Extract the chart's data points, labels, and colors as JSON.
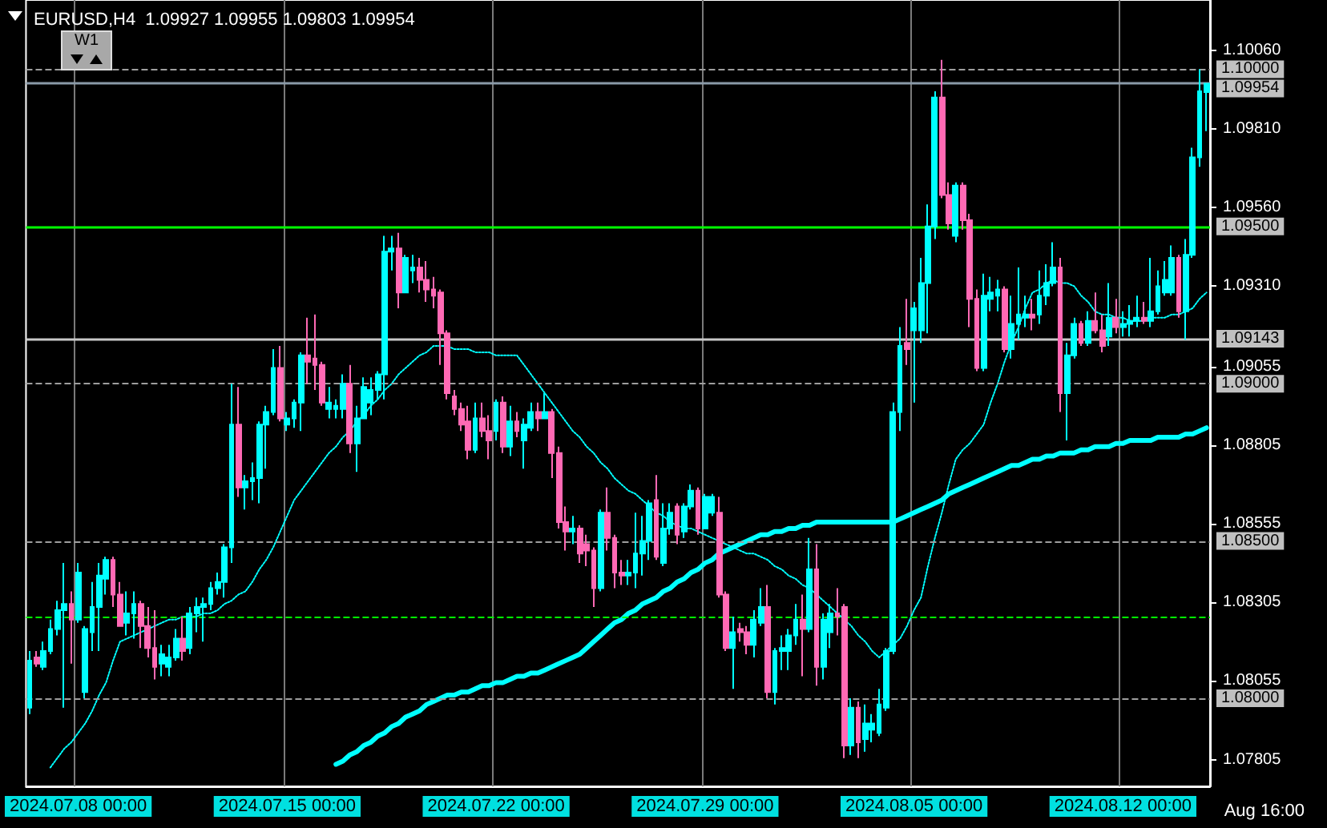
{
  "chart_data": {
    "type": "candlestick",
    "title": "EURUSD,H4  1.09927 1.09955 1.09803 1.09954",
    "annotations": [
      "W1",
      "Aug 16:00"
    ],
    "categories": [
      null,
      null,
      null,
      null,
      null,
      null,
      null,
      "2024.07.08 00:00",
      null,
      null,
      null,
      null,
      null,
      null,
      null,
      null,
      null,
      null,
      null,
      null,
      null,
      null,
      null,
      null,
      null,
      null,
      null,
      null,
      null,
      null,
      null,
      null,
      null,
      null,
      null,
      null,
      null,
      "2024.07.15 00:00",
      null,
      null,
      null,
      null,
      null,
      null,
      null,
      null,
      null,
      null,
      null,
      null,
      null,
      null,
      null,
      null,
      null,
      null,
      null,
      null,
      null,
      null,
      null,
      null,
      null,
      null,
      null,
      null,
      null,
      "2024.07.22 00:00",
      null,
      null,
      null,
      null,
      null,
      null,
      null,
      null,
      null,
      null,
      null,
      null,
      null,
      null,
      null,
      null,
      null,
      null,
      null,
      null,
      null,
      null,
      null,
      null,
      null,
      null,
      null,
      null,
      null,
      "2024.07.29 00:00",
      null,
      null,
      null,
      null,
      null,
      null,
      null,
      null,
      null,
      null,
      null,
      null,
      null,
      null,
      null,
      null,
      null,
      null,
      null,
      null,
      null,
      null,
      null,
      null,
      null,
      null,
      null,
      null,
      null,
      "2024.08.05 00:00",
      null,
      null,
      null,
      null,
      null,
      null,
      null,
      null,
      null,
      null,
      null,
      null,
      null,
      null,
      null,
      null,
      null,
      null,
      null,
      null,
      null,
      null,
      null,
      null,
      null,
      null,
      null,
      null,
      null,
      "2024.08.12 00:00",
      null,
      null,
      null,
      null,
      null,
      null,
      null,
      null,
      null,
      null,
      null,
      null
    ],
    "colors": [
      "#00ffff",
      "#ff69b4",
      "#00ffff",
      "#00ffff",
      "#00ffff",
      "#00ffff",
      "#ff69b4",
      "#00ffff",
      "#00ffff",
      "#00ffff",
      "#00ffff",
      "#00ffff",
      "#ff69b4",
      "#ff69b4",
      "#00ffff",
      "#00ffff",
      "#ff69b4",
      "#ff69b4",
      "#ff69b4",
      "#00ffff",
      "#00ffff",
      "#00ffff",
      "#ff69b4",
      "#00ffff",
      "#00ffff",
      "#00ffff",
      "#00ffff",
      "#00ffff",
      "#00ffff",
      "#00ffff",
      "#ff69b4",
      "#00ffff",
      "#00ffff",
      "#00ffff",
      "#00ffff",
      "#00ffff",
      "#ff69b4",
      "#00ffff",
      "#00ffff",
      "#00ffff",
      "#ff69b4",
      "#ff69b4",
      "#ff69b4",
      "#00ffff",
      "#00ffff",
      "#00ffff",
      "#ff69b4",
      "#00ffff",
      "#00ffff",
      "#00ffff",
      "#00ffff",
      "#00ffff",
      "#00ffff",
      "#ff69b4",
      "#00ffff",
      "#00ffff",
      "#ff69b4",
      "#ff69b4",
      "#ff69b4",
      "#ff69b4",
      "#ff69b4",
      "#ff69b4",
      "#ff69b4",
      "#ff69b4",
      "#00ffff",
      "#ff69b4",
      "#ff69b4",
      "#00ffff",
      "#ff69b4",
      "#00ffff",
      "#ff69b4",
      "#00ffff",
      "#00ffff",
      "#ff69b4",
      "#00ffff",
      "#ff69b4",
      "#ff69b4",
      "#ff69b4",
      "#00ffff",
      "#ff69b4",
      "#ff69b4",
      "#ff69b4",
      "#00ffff",
      "#ff69b4",
      "#ff69b4",
      "#ff69b4",
      "#00ffff",
      "#00ffff",
      "#00ffff",
      "#00ffff",
      "#ff69b4",
      "#00ffff",
      "#00ffff",
      "#ff69b4",
      "#00ffff",
      "#00ffff",
      "#ff69b4",
      "#00ffff",
      "#00ffff",
      "#ff69b4",
      "#ff69b4",
      "#00ffff",
      "#ff69b4",
      "#ff69b4",
      "#00ffff",
      "#00ffff",
      "#ff69b4",
      "#00ffff",
      "#00ffff",
      "#00ffff",
      "#00ffff",
      "#ff69b4",
      "#00ffff",
      "#ff69b4",
      "#00ffff",
      "#00ffff",
      "#ff69b4",
      "#ff69b4",
      "#00ffff",
      "#ff69b4",
      "#00ffff",
      "#00ffff",
      "#00ffff",
      "#00ffff",
      "#00ffff",
      "#00ffff",
      "#ff69b4",
      "#00ffff",
      "#00ffff",
      "#00ffff",
      "#00ffff",
      "#ff69b4",
      "#ff69b4",
      "#00ffff",
      "#ff69b4",
      "#ff69b4",
      "#ff69b4",
      "#00ffff",
      "#00ffff",
      "#00ffff",
      "#ff69b4",
      "#00ffff",
      "#00ffff",
      "#00ffff",
      "#ff69b4",
      "#00ffff",
      "#00ffff",
      "#00ffff",
      "#ff69b4",
      "#00ffff",
      "#00ffff",
      "#ff69b4",
      "#00ffff",
      "#ff69b4",
      "#ff69b4",
      "#00ffff",
      "#ff69b4",
      "#00ffff",
      "#00ffff",
      "#00ffff",
      "#ff69b4",
      "#00ffff",
      "#00ffff",
      "#00ffff",
      "#00ffff",
      "#ff69b4",
      "#00ffff",
      "#00ffff",
      "#00ffff",
      "#00ffff"
    ],
    "ohlc": [
      [
        1.0797,
        1.0815,
        1.0795,
        1.0812
      ],
      [
        1.0813,
        1.0815,
        1.081,
        1.0811
      ],
      [
        1.081,
        1.0818,
        1.0809,
        1.0815
      ],
      [
        1.0815,
        1.0825,
        1.0814,
        1.0822
      ],
      [
        1.0822,
        1.0831,
        1.082,
        1.0828
      ],
      [
        1.0828,
        1.0843,
        1.0797,
        1.083
      ],
      [
        1.083,
        1.0834,
        1.0811,
        1.0825
      ],
      [
        1.0825,
        1.0843,
        1.0824,
        1.084
      ],
      [
        1.0802,
        1.0823,
        1.08,
        1.0822
      ],
      [
        1.0821,
        1.0837,
        1.0815,
        1.0829
      ],
      [
        1.0829,
        1.0843,
        1.0815,
        1.0839
      ],
      [
        1.0838,
        1.0845,
        1.0833,
        1.0844
      ],
      [
        1.0844,
        1.0845,
        1.0829,
        1.0833
      ],
      [
        1.0833,
        1.0837,
        1.0823,
        1.0823
      ],
      [
        1.0824,
        1.0834,
        1.082,
        1.0827
      ],
      [
        1.0827,
        1.0834,
        1.0819,
        1.083
      ],
      [
        1.083,
        1.0831,
        1.0816,
        1.0823
      ],
      [
        1.0823,
        1.0829,
        1.0813,
        1.0816
      ],
      [
        1.0816,
        1.0828,
        1.0806,
        1.081
      ],
      [
        1.0811,
        1.0817,
        1.0807,
        1.0814
      ],
      [
        1.081,
        1.0817,
        1.0807,
        1.0813
      ],
      [
        1.0813,
        1.0822,
        1.0812,
        1.0819
      ],
      [
        1.0819,
        1.0826,
        1.0812,
        1.0815
      ],
      [
        1.0816,
        1.0829,
        1.0814,
        1.0827
      ],
      [
        1.0827,
        1.0832,
        1.0821,
        1.0829
      ],
      [
        1.0829,
        1.0832,
        1.0818,
        1.083
      ],
      [
        1.083,
        1.0837,
        1.0828,
        1.0835
      ],
      [
        1.0835,
        1.084,
        1.0833,
        1.0837
      ],
      [
        1.0837,
        1.0849,
        1.0832,
        1.0848
      ],
      [
        1.0848,
        1.09,
        1.0843,
        1.0887
      ],
      [
        1.0887,
        1.0899,
        1.0864,
        1.0867
      ],
      [
        1.0867,
        1.0871,
        1.086,
        1.0869
      ],
      [
        1.0869,
        1.0875,
        1.0863,
        1.087
      ],
      [
        1.087,
        1.0888,
        1.0862,
        1.0887
      ],
      [
        1.0887,
        1.0893,
        1.0873,
        1.0891
      ],
      [
        1.0891,
        1.0911,
        1.089,
        1.0905
      ],
      [
        1.0905,
        1.0912,
        1.0888,
        1.0889
      ],
      [
        1.0887,
        1.0891,
        1.0885,
        1.0889
      ],
      [
        1.0889,
        1.0895,
        1.0886,
        1.0894
      ],
      [
        1.0894,
        1.091,
        1.0885,
        1.0909
      ],
      [
        1.0909,
        1.0921,
        1.09,
        1.0907
      ],
      [
        1.0908,
        1.0922,
        1.0898,
        1.0906
      ],
      [
        1.0906,
        1.0907,
        1.0893,
        1.0894
      ],
      [
        1.0892,
        1.0899,
        1.0889,
        1.0894
      ],
      [
        1.0892,
        1.0895,
        1.0889,
        1.0893
      ],
      [
        1.0892,
        1.0903,
        1.0889,
        1.09
      ],
      [
        1.09,
        1.0906,
        1.0878,
        1.0881
      ],
      [
        1.0881,
        1.0893,
        1.0872,
        1.0889
      ],
      [
        1.0889,
        1.0902,
        1.0889,
        1.0899
      ],
      [
        1.0894,
        1.0902,
        1.089,
        1.0898
      ],
      [
        1.0898,
        1.0904,
        1.0895,
        1.0903
      ],
      [
        1.0903,
        1.0947,
        1.0895,
        1.0942
      ],
      [
        1.0942,
        1.0947,
        1.0936,
        1.0943
      ],
      [
        1.0943,
        1.0948,
        1.0924,
        1.0929
      ],
      [
        1.0929,
        1.0941,
        1.0929,
        1.094
      ],
      [
        1.0936,
        1.0941,
        1.0932,
        1.0937
      ],
      [
        1.0937,
        1.094,
        1.0929,
        1.0933
      ],
      [
        1.0933,
        1.0939,
        1.0926,
        1.093
      ],
      [
        1.093,
        1.0934,
        1.0924,
        1.0928
      ],
      [
        1.0929,
        1.093,
        1.0906,
        1.0916
      ],
      [
        1.0916,
        1.0917,
        1.0895,
        1.0897
      ],
      [
        1.0896,
        1.0898,
        1.089,
        1.0892
      ],
      [
        1.0892,
        1.0894,
        1.0885,
        1.0887
      ],
      [
        1.0888,
        1.0893,
        1.0876,
        1.0879
      ],
      [
        1.0879,
        1.0894,
        1.0878,
        1.0889
      ],
      [
        1.0889,
        1.0894,
        1.0883,
        1.0885
      ],
      [
        1.0885,
        1.089,
        1.0876,
        1.0882
      ],
      [
        1.0885,
        1.0895,
        1.0882,
        1.0894
      ],
      [
        1.0894,
        1.0896,
        1.0878,
        1.088
      ],
      [
        1.088,
        1.0893,
        1.0877,
        1.0888
      ],
      [
        1.0888,
        1.0891,
        1.0883,
        1.0885
      ],
      [
        1.0882,
        1.0889,
        1.0873,
        1.0887
      ],
      [
        1.0886,
        1.0894,
        1.0885,
        1.0891
      ],
      [
        1.0891,
        1.0894,
        1.0885,
        1.0889
      ],
      [
        1.0889,
        1.0897,
        1.0889,
        1.0891
      ],
      [
        1.0891,
        1.0892,
        1.087,
        1.0878
      ],
      [
        1.0878,
        1.088,
        1.0854,
        1.0856
      ],
      [
        1.0856,
        1.0861,
        1.0847,
        1.0853
      ],
      [
        1.0853,
        1.0858,
        1.0849,
        1.0854
      ],
      [
        1.0854,
        1.0855,
        1.0843,
        1.0846
      ],
      [
        1.0849,
        1.0852,
        1.0842,
        1.0847
      ],
      [
        1.0847,
        1.0848,
        1.0829,
        1.0835
      ],
      [
        1.0835,
        1.086,
        1.0834,
        1.0859
      ],
      [
        1.0859,
        1.0867,
        1.0847,
        1.0851
      ],
      [
        1.0851,
        1.0852,
        1.0835,
        1.084
      ],
      [
        1.084,
        1.0844,
        1.0836,
        1.0839
      ],
      [
        1.0839,
        1.0844,
        1.0836,
        1.084
      ],
      [
        1.084,
        1.0859,
        1.0835,
        1.0846
      ],
      [
        1.0846,
        1.0858,
        1.0839,
        1.085
      ],
      [
        1.085,
        1.0863,
        1.0844,
        1.0862
      ],
      [
        1.0863,
        1.0871,
        1.0844,
        1.0845
      ],
      [
        1.0843,
        1.0862,
        1.0842,
        1.0854
      ],
      [
        1.0854,
        1.0862,
        1.0852,
        1.0859
      ],
      [
        1.0861,
        1.0862,
        1.0849,
        1.0852
      ],
      [
        1.0853,
        1.0862,
        1.0851,
        1.0861
      ],
      [
        1.0861,
        1.0868,
        1.086,
        1.0866
      ],
      [
        1.0866,
        1.0867,
        1.0852,
        1.0854
      ],
      [
        1.0854,
        1.0865,
        1.0854,
        1.0864
      ],
      [
        1.0859,
        1.0865,
        1.0858,
        1.0864
      ],
      [
        1.0859,
        1.0864,
        1.0832,
        1.0833
      ],
      [
        1.0833,
        1.0834,
        1.0815,
        1.0816
      ],
      [
        1.0816,
        1.0826,
        1.0803,
        1.0821
      ],
      [
        1.0822,
        1.0824,
        1.0818,
        1.0821
      ],
      [
        1.0821,
        1.0823,
        1.0814,
        1.0817
      ],
      [
        1.0817,
        1.0828,
        1.0813,
        1.0825
      ],
      [
        1.0824,
        1.0835,
        1.0823,
        1.0829
      ],
      [
        1.0829,
        1.0836,
        1.08,
        1.0802
      ],
      [
        1.0802,
        1.0816,
        1.0798,
        1.0815
      ],
      [
        1.0815,
        1.082,
        1.0809,
        1.0816
      ],
      [
        1.0815,
        1.0822,
        1.0809,
        1.082
      ],
      [
        1.082,
        1.083,
        1.0817,
        1.0825
      ],
      [
        1.0825,
        1.0833,
        1.0807,
        1.0822
      ],
      [
        1.0822,
        1.0851,
        1.0821,
        1.0841
      ],
      [
        1.0841,
        1.0849,
        1.0804,
        1.081
      ],
      [
        1.081,
        1.0827,
        1.0806,
        1.0825
      ],
      [
        1.0821,
        1.083,
        1.0816,
        1.0827
      ],
      [
        1.0827,
        1.0835,
        1.082,
        1.0826
      ],
      [
        1.0829,
        1.083,
        1.0781,
        1.0785
      ],
      [
        1.0785,
        1.08,
        1.0782,
        1.0797
      ],
      [
        1.0797,
        1.0799,
        1.0781,
        1.0786
      ],
      [
        1.0787,
        1.0798,
        1.0783,
        1.0792
      ],
      [
        1.079,
        1.0795,
        1.0786,
        1.0792
      ],
      [
        1.0789,
        1.0803,
        1.0788,
        1.0798
      ],
      [
        1.0797,
        1.0816,
        1.0796,
        1.0815
      ],
      [
        1.0815,
        1.0894,
        1.0814,
        1.0891
      ],
      [
        1.0891,
        1.0918,
        1.0885,
        1.0912
      ],
      [
        1.0913,
        1.0927,
        1.0906,
        1.0911
      ],
      [
        1.0917,
        1.0926,
        1.0894,
        1.0924
      ],
      [
        1.0917,
        1.094,
        1.0913,
        1.0932
      ],
      [
        1.0932,
        1.0957,
        1.0916,
        1.095
      ],
      [
        1.095,
        1.0993,
        1.0946,
        1.0991
      ],
      [
        1.0991,
        1.1003,
        1.0959,
        1.096
      ],
      [
        1.096,
        1.0964,
        1.0949,
        1.0951
      ],
      [
        1.0947,
        1.0964,
        1.0945,
        1.0963
      ],
      [
        1.0963,
        1.0964,
        1.0949,
        1.0952
      ],
      [
        1.0952,
        1.0954,
        1.0918,
        1.0927
      ],
      [
        1.0927,
        1.093,
        1.0904,
        1.0905
      ],
      [
        1.0905,
        1.0935,
        1.0904,
        1.0928
      ],
      [
        1.0927,
        1.0934,
        1.0923,
        1.0929
      ],
      [
        1.0928,
        1.0933,
        1.0923,
        1.093
      ],
      [
        1.093,
        1.0931,
        1.091,
        1.0911
      ],
      [
        1.0911,
        1.0928,
        1.0908,
        1.0919
      ],
      [
        1.0919,
        1.0937,
        1.0914,
        1.0922
      ],
      [
        1.0921,
        1.0928,
        1.0918,
        1.0922
      ],
      [
        1.0922,
        1.0927,
        1.0917,
        1.0921
      ],
      [
        1.0922,
        1.0936,
        1.0919,
        1.0928
      ],
      [
        1.0928,
        1.0938,
        1.0925,
        1.0932
      ],
      [
        1.0932,
        1.0945,
        1.0931,
        1.0937
      ],
      [
        1.0937,
        1.094,
        1.0891,
        1.0897
      ],
      [
        1.0897,
        1.0913,
        1.0882,
        1.0909
      ],
      [
        1.0909,
        1.0921,
        1.0908,
        1.0919
      ],
      [
        1.0919,
        1.092,
        1.0912,
        1.0913
      ],
      [
        1.0913,
        1.0923,
        1.0912,
        1.092
      ],
      [
        1.092,
        1.0929,
        1.0916,
        1.0917
      ],
      [
        1.0917,
        1.0922,
        1.091,
        1.0912
      ],
      [
        1.0915,
        1.0932,
        1.0912,
        1.0921
      ],
      [
        1.0921,
        1.0927,
        1.0916,
        1.0918
      ],
      [
        1.0918,
        1.0923,
        1.0915,
        1.0919
      ],
      [
        1.0919,
        1.0925,
        1.0915,
        1.092
      ],
      [
        1.092,
        1.0928,
        1.0918,
        1.0921
      ],
      [
        1.0921,
        1.0926,
        1.0919,
        1.092
      ],
      [
        1.092,
        1.094,
        1.0918,
        1.0923
      ],
      [
        1.0923,
        1.0936,
        1.0922,
        1.0931
      ],
      [
        1.0929,
        1.0939,
        1.0928,
        1.0933
      ],
      [
        1.0929,
        1.0944,
        1.0928,
        1.094
      ],
      [
        1.094,
        1.0941,
        1.0921,
        1.0923
      ],
      [
        1.0923,
        1.0946,
        1.0914,
        1.0941
      ],
      [
        1.0941,
        1.0975,
        1.094,
        1.0972
      ],
      [
        1.0972,
        1.1,
        1.0969,
        1.0993
      ],
      [
        1.09927,
        1.09955,
        1.09803,
        1.09954
      ]
    ],
    "series": [
      {
        "type": "line",
        "color": "#00ffff",
        "line_style": "solid",
        "values": [
          null,
          null,
          null,
          null,
          null,
          null,
          null,
          null,
          null,
          null,
          null,
          null,
          null,
          null,
          null,
          null,
          null,
          null,
          null,
          null,
          null,
          null,
          null,
          null,
          null,
          null,
          null,
          null,
          null,
          null,
          null,
          null,
          null,
          null,
          null,
          null,
          null,
          null,
          null,
          null,
          null,
          null,
          null,
          null,
          1.0779,
          1.078,
          1.0782,
          1.0783,
          1.0785,
          1.0786,
          1.0788,
          1.0789,
          1.0791,
          1.0792,
          1.0794,
          1.0795,
          1.0796,
          1.0798,
          1.0799,
          1.08,
          1.0801,
          1.0801,
          1.0802,
          1.0802,
          1.0803,
          1.0804,
          1.0804,
          1.0805,
          1.0805,
          1.0806,
          1.0807,
          1.0807,
          1.0808,
          1.0808,
          1.0809,
          1.081,
          1.0811,
          1.0812,
          1.0813,
          1.0814,
          1.0816,
          1.0818,
          1.082,
          1.0822,
          1.0824,
          1.0825,
          1.0827,
          1.0828,
          1.083,
          1.0831,
          1.0832,
          1.0834,
          1.0835,
          1.0837,
          1.0838,
          1.084,
          1.0841,
          1.0843,
          1.0844,
          1.0846,
          1.0847,
          1.0848,
          1.0849,
          1.085,
          1.0851,
          1.0852,
          1.0852,
          1.0853,
          1.0853,
          1.0854,
          1.0854,
          1.0855,
          1.0855,
          1.0856,
          1.0856,
          1.0856,
          1.0856,
          1.0856,
          1.0856,
          1.0856,
          1.0856,
          1.0856,
          1.0856,
          1.0856,
          1.0856,
          1.0857,
          1.0858,
          1.0859,
          1.086,
          1.0861,
          1.0862,
          1.0863,
          1.0865,
          1.0866,
          1.0867,
          1.0868,
          1.0869,
          1.087,
          1.0871,
          1.0872,
          1.0873,
          1.0874,
          1.0874,
          1.0875,
          1.0876,
          1.0876,
          1.0877,
          1.0877,
          1.0878,
          1.0878,
          1.0878,
          1.0879,
          1.0879,
          1.088,
          1.088,
          1.088,
          1.0881,
          1.0881,
          1.0882,
          1.0882,
          1.0882,
          1.0882,
          1.0883,
          1.0883,
          1.0883,
          1.0883,
          1.0884,
          1.0884,
          1.0885,
          1.0886
        ]
      },
      {
        "type": "line",
        "color": "#00ffff",
        "line_style": "dotted",
        "values": [
          null,
          null,
          null,
          1.0778,
          1.0781,
          1.0784,
          1.0786,
          1.0789,
          1.0792,
          1.0796,
          1.0801,
          1.0805,
          1.0812,
          1.0818,
          1.0819,
          1.082,
          1.0821,
          1.0822,
          1.0823,
          1.0824,
          1.0825,
          1.0825,
          1.0826,
          1.0826,
          1.0826,
          1.0827,
          1.0827,
          1.0828,
          1.083,
          1.0831,
          1.0833,
          1.0834,
          1.0837,
          1.0841,
          1.0844,
          1.0848,
          1.0853,
          1.0858,
          1.0863,
          1.0866,
          1.0869,
          1.0872,
          1.0875,
          1.0878,
          1.088,
          1.0883,
          1.0885,
          1.0888,
          1.089,
          1.0893,
          1.0895,
          1.0898,
          1.09,
          1.0903,
          1.0905,
          1.0907,
          1.0909,
          1.091,
          1.0912,
          1.0912,
          1.0912,
          1.0911,
          1.0911,
          1.0911,
          1.091,
          1.091,
          1.091,
          1.0909,
          1.0909,
          1.0909,
          1.0909,
          1.0906,
          1.0903,
          1.09,
          1.0897,
          1.0894,
          1.0891,
          1.0888,
          1.0885,
          1.0883,
          1.088,
          1.0878,
          1.0875,
          1.0873,
          1.087,
          1.0868,
          1.0866,
          1.0865,
          1.0863,
          1.0861,
          1.0859,
          1.0858,
          1.0856,
          1.0855,
          1.0854,
          1.0854,
          1.0853,
          1.0852,
          1.0851,
          1.085,
          1.0849,
          1.0848,
          1.0847,
          1.0846,
          1.0846,
          1.0845,
          1.0844,
          1.0842,
          1.0841,
          1.0839,
          1.0838,
          1.0836,
          1.0835,
          1.0833,
          1.0831,
          1.0829,
          1.0827,
          1.0825,
          1.0823,
          1.082,
          1.0818,
          1.0815,
          1.0813,
          1.0815,
          1.0817,
          1.0819,
          1.0823,
          1.0828,
          1.0832,
          1.0842,
          1.0851,
          1.0859,
          1.0868,
          1.0876,
          1.0879,
          1.0881,
          1.0884,
          1.0887,
          1.0894,
          1.09,
          1.0907,
          1.0913,
          1.0918,
          1.0924,
          1.0929,
          1.093,
          1.0932,
          1.0933,
          1.0932,
          1.0932,
          1.0931,
          1.0928,
          1.0926,
          1.0923,
          1.0922,
          1.0922,
          1.0921,
          1.0921,
          1.092,
          1.092,
          1.092,
          1.0921,
          1.0921,
          1.0921,
          1.0922,
          1.0922,
          1.0923,
          1.0924,
          1.0927,
          1.0929
        ]
      }
    ],
    "ylim": [
      1.0772,
      1.1022
    ],
    "yticks": [
      {
        "value": 1.07805,
        "label": "1.07805"
      },
      {
        "value": 1.08055,
        "label": "1.08055"
      },
      {
        "value": 1.08305,
        "label": "1.08305"
      },
      {
        "value": 1.08555,
        "label": "1.08555"
      },
      {
        "value": 1.08805,
        "label": "1.08805"
      },
      {
        "value": 1.09055,
        "label": "1.09055"
      },
      {
        "value": 1.0931,
        "label": "1.09310"
      },
      {
        "value": 1.0956,
        "label": "1.09560"
      },
      {
        "value": 1.0981,
        "label": "1.09810"
      },
      {
        "value": 1.1006,
        "label": "1.10060"
      }
    ],
    "ref_lines": [
      {
        "axis": "y",
        "value": 1.1,
        "label": "1.10000",
        "color": "#9e9e9e",
        "line_style": "dashed"
      },
      {
        "axis": "y",
        "value": 1.09954,
        "label": "1.09954",
        "color": "#8a9aa8",
        "line_style": "solid"
      },
      {
        "axis": "y",
        "value": 1.095,
        "label": "1.09500",
        "color": "#00ff00",
        "line_style": "solid"
      },
      {
        "axis": "y",
        "value": 1.09143,
        "label": "1.09143",
        "color": "#c8c8c8",
        "line_style": "solid"
      },
      {
        "axis": "y",
        "value": 1.09,
        "label": "1.09000",
        "color": "#9e9e9e",
        "line_style": "dashed"
      },
      {
        "axis": "y",
        "value": 1.085,
        "label": "1.08500",
        "color": "#9e9e9e",
        "line_style": "dashed"
      },
      {
        "axis": "y",
        "value": 1.0826,
        "color": "#00ff00",
        "line_style": "dashed"
      },
      {
        "axis": "y",
        "value": 1.08,
        "label": "1.08000",
        "color": "#9e9e9e",
        "line_style": "dashed"
      }
    ],
    "grid": "x",
    "marker": "none"
  }
}
